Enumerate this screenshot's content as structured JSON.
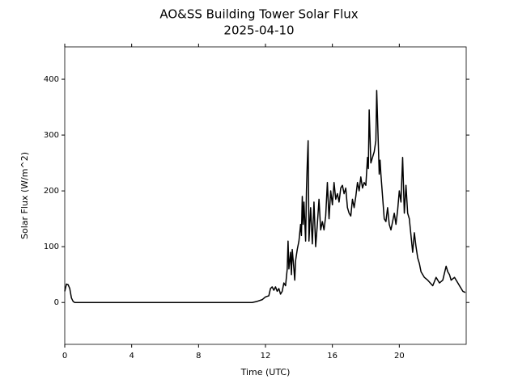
{
  "chart_data": {
    "type": "line",
    "title": "AO&SS Building Tower Solar Flux",
    "subtitle": "2025-04-10",
    "x_label": "Time (UTC)",
    "y_label": "Solar Flux (W/m^2)",
    "xlim": [
      0,
      24
    ],
    "xticks": [
      0,
      4,
      8,
      12,
      16,
      20
    ],
    "ylim": [
      -75,
      458
    ],
    "yticks": [
      0,
      100,
      200,
      300,
      400
    ],
    "grid": false,
    "series": [
      {
        "name": "Solar Flux",
        "color": "#000000",
        "x": [
          0,
          0.1,
          0.2,
          0.3,
          0.4,
          0.5,
          0.6,
          11.2,
          11.5,
          11.8,
          12.0,
          12.2,
          12.3,
          12.4,
          12.5,
          12.6,
          12.7,
          12.8,
          12.9,
          13.0,
          13.1,
          13.2,
          13.3,
          13.35,
          13.4,
          13.5,
          13.55,
          13.6,
          13.7,
          13.75,
          13.8,
          13.9,
          14.0,
          14.1,
          14.15,
          14.2,
          14.25,
          14.3,
          14.4,
          14.45,
          14.5,
          14.55,
          14.6,
          14.7,
          14.8,
          14.9,
          15.0,
          15.1,
          15.2,
          15.3,
          15.4,
          15.5,
          15.6,
          15.7,
          15.8,
          15.9,
          16.0,
          16.1,
          16.2,
          16.3,
          16.4,
          16.5,
          16.6,
          16.7,
          16.8,
          16.9,
          17.0,
          17.1,
          17.2,
          17.3,
          17.4,
          17.5,
          17.6,
          17.7,
          17.8,
          17.9,
          18.0,
          18.1,
          18.15,
          18.2,
          18.3,
          18.4,
          18.5,
          18.6,
          18.65,
          18.7,
          18.8,
          18.85,
          18.9,
          19.0,
          19.1,
          19.2,
          19.3,
          19.4,
          19.5,
          19.6,
          19.7,
          19.8,
          19.9,
          20.0,
          20.1,
          20.2,
          20.3,
          20.4,
          20.5,
          20.6,
          20.7,
          20.8,
          20.9,
          21.0,
          21.1,
          21.2,
          21.3,
          21.5,
          21.7,
          22.0,
          22.2,
          22.4,
          22.6,
          22.8,
          22.9,
          23.0,
          23.1,
          23.3,
          23.5,
          23.6,
          23.8,
          23.95
        ],
        "values": [
          20,
          33,
          32,
          25,
          8,
          2,
          0,
          0,
          2,
          5,
          10,
          12,
          25,
          28,
          22,
          28,
          20,
          25,
          15,
          20,
          35,
          30,
          60,
          110,
          60,
          90,
          50,
          95,
          60,
          40,
          75,
          95,
          110,
          140,
          120,
          190,
          140,
          180,
          110,
          200,
          250,
          290,
          110,
          170,
          105,
          180,
          100,
          140,
          185,
          130,
          145,
          130,
          155,
          215,
          150,
          200,
          175,
          215,
          185,
          195,
          180,
          205,
          210,
          195,
          205,
          170,
          160,
          155,
          185,
          170,
          190,
          215,
          200,
          225,
          205,
          215,
          210,
          260,
          240,
          345,
          250,
          260,
          270,
          290,
          380,
          330,
          230,
          255,
          230,
          190,
          150,
          145,
          170,
          140,
          130,
          145,
          160,
          140,
          165,
          200,
          180,
          260,
          160,
          210,
          160,
          150,
          120,
          90,
          125,
          100,
          80,
          70,
          55,
          45,
          40,
          30,
          45,
          35,
          40,
          65,
          55,
          50,
          40,
          45,
          35,
          30,
          20,
          18
        ]
      }
    ]
  }
}
